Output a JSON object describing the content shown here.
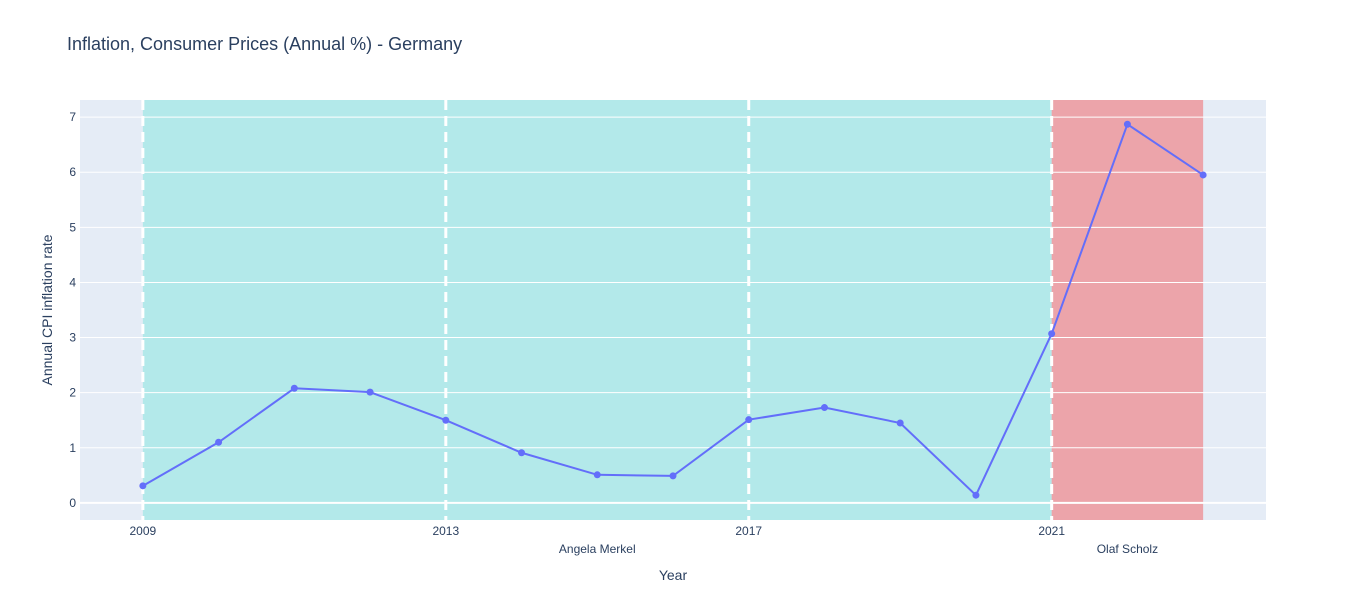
{
  "chart_data": {
    "type": "line",
    "title": "Inflation, Consumer Prices (Annual %) - Germany",
    "xlabel": "Year",
    "ylabel": "Annual CPI inflation rate",
    "x": [
      2009,
      2010,
      2011,
      2012,
      2013,
      2014,
      2015,
      2016,
      2017,
      2018,
      2019,
      2020,
      2021,
      2022,
      2023
    ],
    "series": [
      {
        "values": [
          0.31,
          1.1,
          2.08,
          2.01,
          1.5,
          0.91,
          0.51,
          0.49,
          1.51,
          1.73,
          1.45,
          0.14,
          3.07,
          6.87,
          5.95
        ]
      }
    ],
    "xlim": [
      2008.17,
      2023.83
    ],
    "ylim": [
      -0.31,
      7.31
    ],
    "xticks": [
      2009,
      2013,
      2017,
      2021
    ],
    "yticks": [
      0,
      1,
      2,
      3,
      4,
      5,
      6,
      7
    ],
    "grid": true,
    "periods": [
      {
        "label": "Angela Merkel",
        "start": 2009,
        "end": 2021,
        "color": "#b3e9ea"
      },
      {
        "label": "Olaf Scholz",
        "start": 2021,
        "end": 2023,
        "color": "#eca4aa"
      }
    ],
    "term_lines": [
      2009,
      2013,
      2017,
      2021
    ],
    "colors": {
      "line": "#636efa",
      "plot_bg": "#e5ecf6",
      "grid": "#ffffff",
      "text": "#2a3f5f"
    }
  }
}
